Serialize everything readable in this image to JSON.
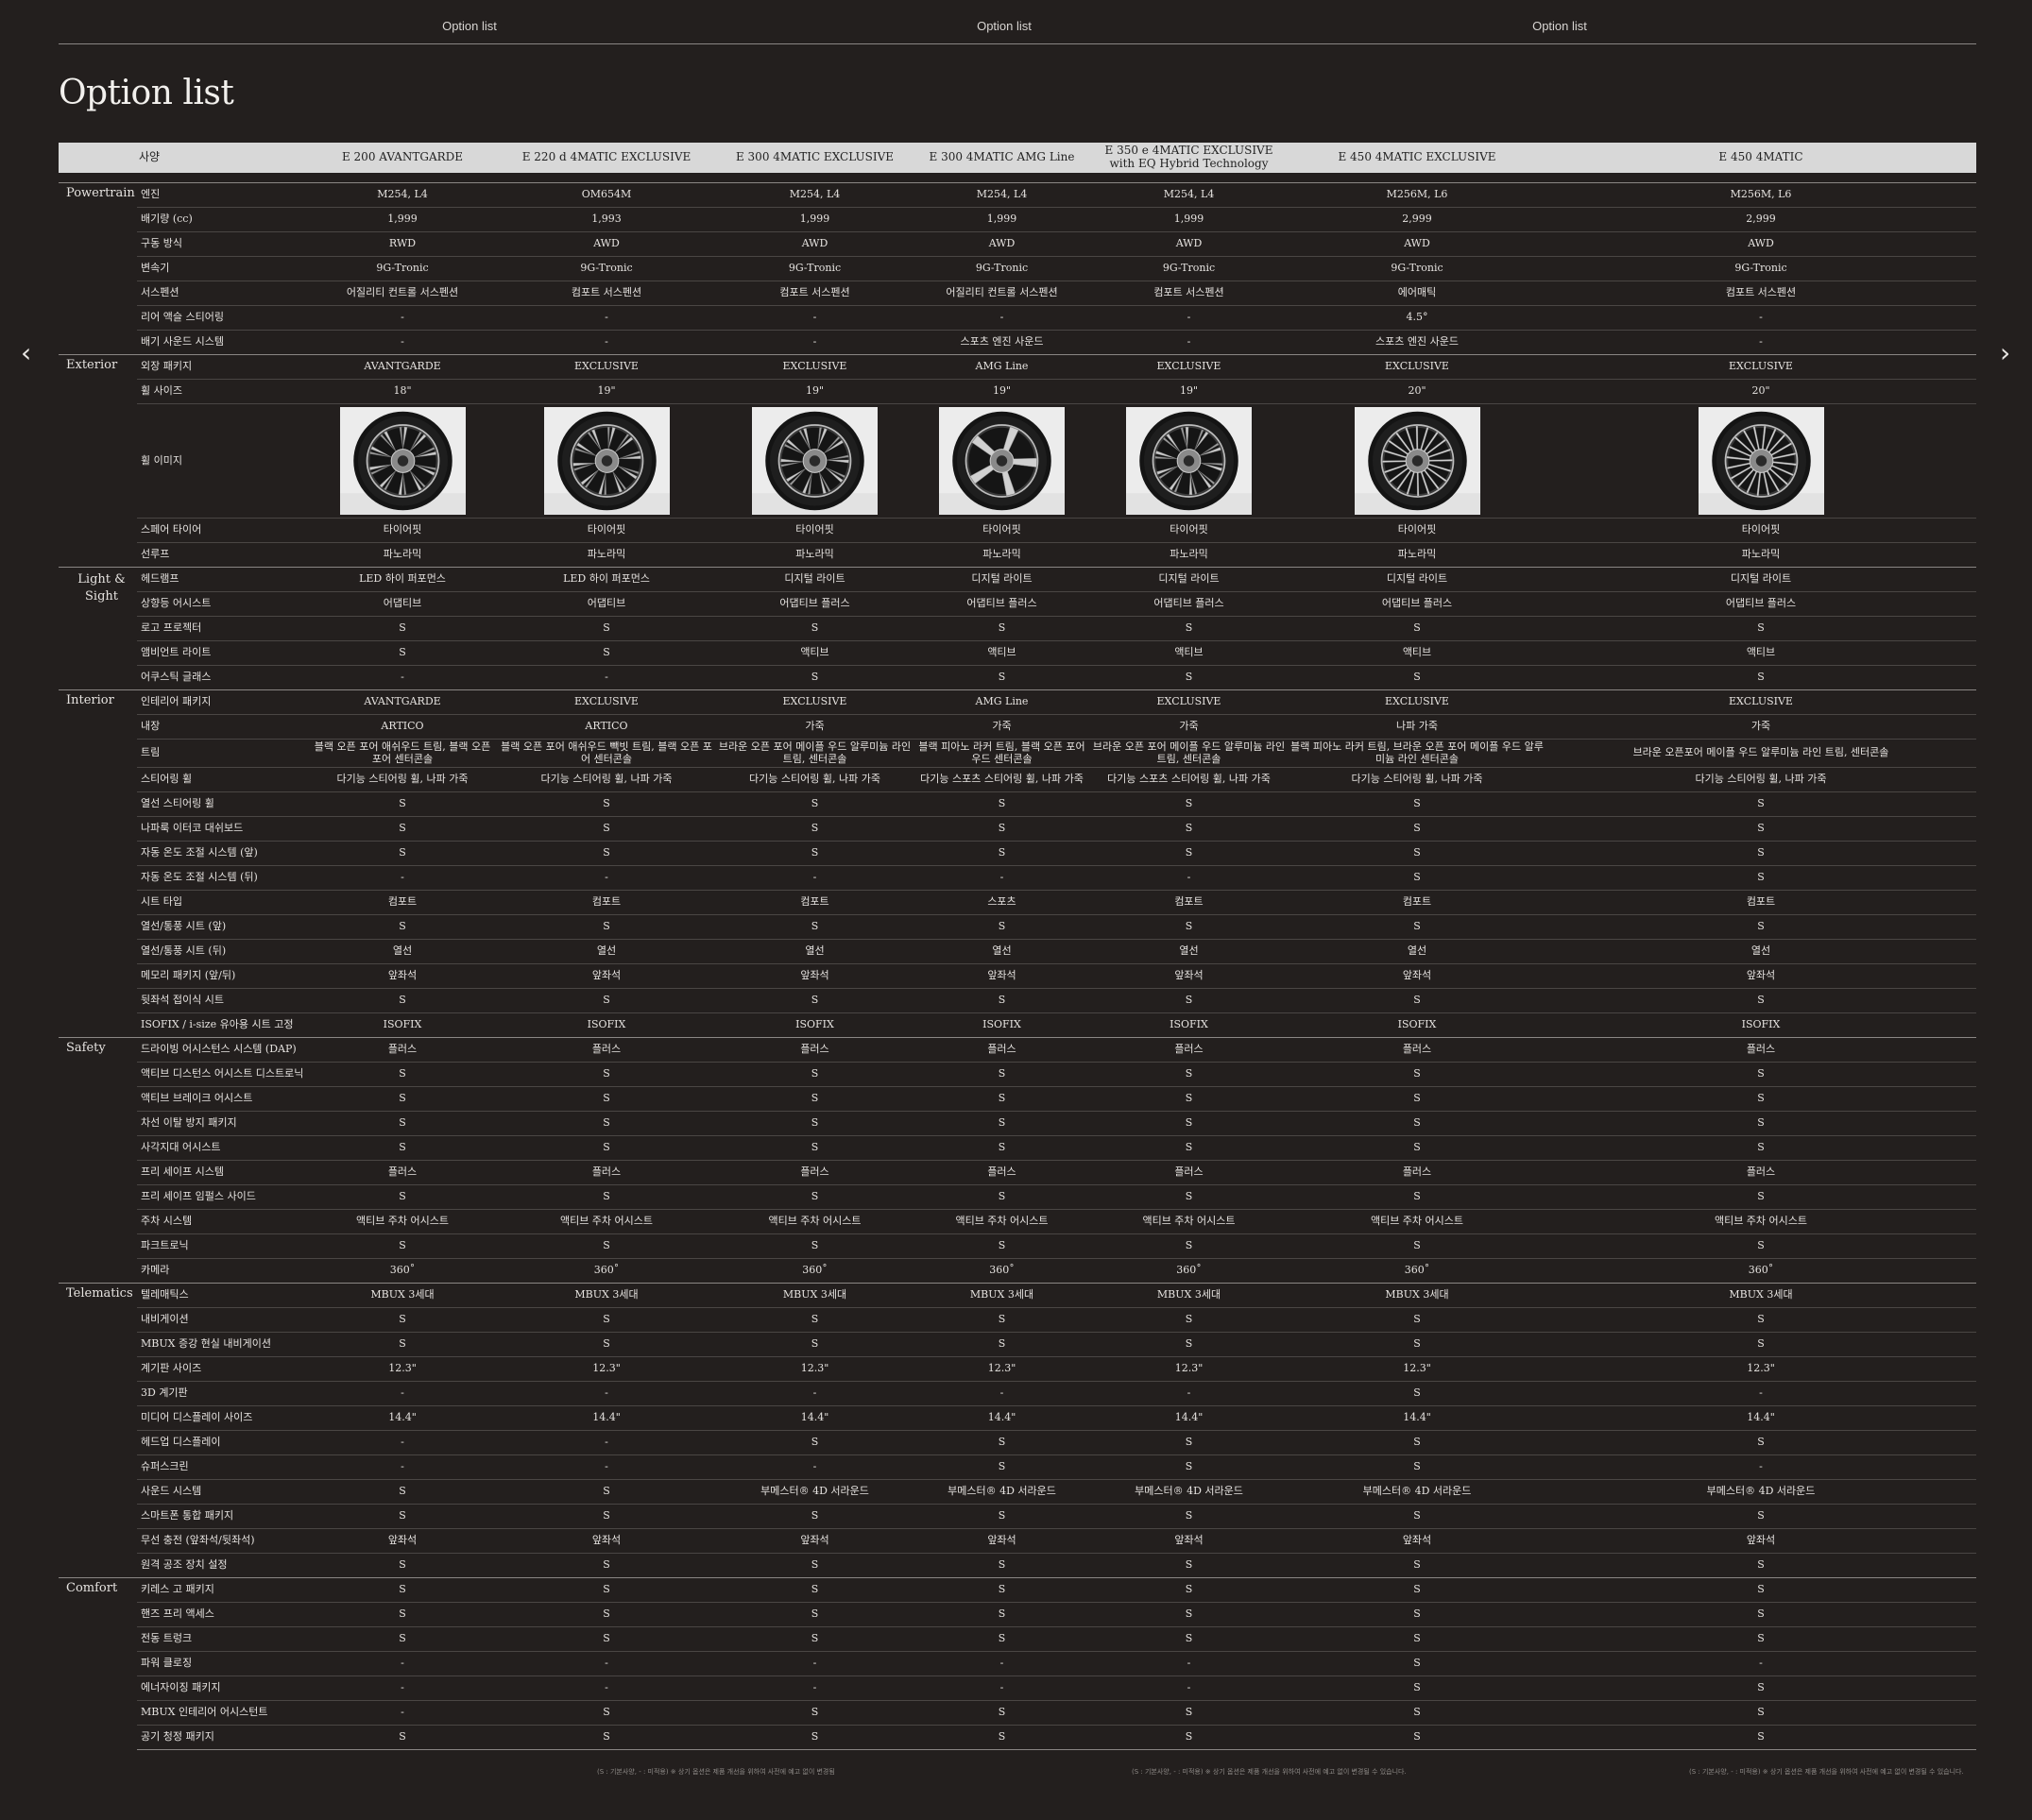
{
  "nav": {
    "tabs": [
      "Option list",
      "Option list",
      "Option list"
    ]
  },
  "page_title": "Option list",
  "header": {
    "label": "사양",
    "models": [
      "E 200 AVANTGARDE",
      "E 220 d 4MATIC EXCLUSIVE",
      "E 300 4MATIC EXCLUSIVE",
      "E 300 4MATIC AMG Line",
      "E 350 e 4MATIC EXCLUSIVE with EQ Hybrid Technology",
      "E 450 4MATIC EXCLUSIVE",
      "E 450 4MATIC"
    ]
  },
  "sections": [
    {
      "name": "Powertrain",
      "rows": [
        [
          "엔진",
          "M254, L4",
          "OM654M",
          "M254, L4",
          "M254, L4",
          "M254, L4",
          "M256M, L6",
          "M256M, L6"
        ],
        [
          "배기량 (cc)",
          "1,999",
          "1,993",
          "1,999",
          "1,999",
          "1,999",
          "2,999",
          "2,999"
        ],
        [
          "구동 방식",
          "RWD",
          "AWD",
          "AWD",
          "AWD",
          "AWD",
          "AWD",
          "AWD"
        ],
        [
          "변속기",
          "9G-Tronic",
          "9G-Tronic",
          "9G-Tronic",
          "9G-Tronic",
          "9G-Tronic",
          "9G-Tronic",
          "9G-Tronic"
        ],
        [
          "서스펜션",
          "어질리티 컨트롤 서스펜션",
          "컴포트 서스펜션",
          "컴포트 서스펜션",
          "어질리티 컨트롤 서스펜션",
          "컴포트 서스펜션",
          "에어매틱",
          "컴포트 서스펜션"
        ],
        [
          "리어 액슬 스티어링",
          "-",
          "-",
          "-",
          "-",
          "-",
          "4.5°",
          "-"
        ],
        [
          "배기 사운드 시스템",
          "-",
          "-",
          "-",
          "스포츠 엔진 사운드",
          "-",
          "스포츠 엔진 사운드",
          "-"
        ]
      ]
    },
    {
      "name": "Exterior",
      "rows": [
        [
          "외장 패키지",
          "AVANTGARDE",
          "EXCLUSIVE",
          "EXCLUSIVE",
          "AMG Line",
          "EXCLUSIVE",
          "EXCLUSIVE",
          "EXCLUSIVE"
        ],
        [
          "휠 사이즈",
          "18\"",
          "19\"",
          "19\"",
          "19\"",
          "19\"",
          "20\"",
          "20\""
        ],
        [
          "휠 이미지"
        ],
        [
          "스페어 타이어",
          "타이어핏",
          "타이어핏",
          "타이어핏",
          "타이어핏",
          "타이어핏",
          "타이어핏",
          "타이어핏"
        ],
        [
          "선루프",
          "파노라믹",
          "파노라믹",
          "파노라믹",
          "파노라믹",
          "파노라믹",
          "파노라믹",
          "파노라믹"
        ]
      ]
    },
    {
      "name": "Light & Sight",
      "rows": [
        [
          "헤드램프",
          "LED 하이 퍼포먼스",
          "LED 하이 퍼포먼스",
          "디지털 라이트",
          "디지털 라이트",
          "디지털 라이트",
          "디지털 라이트",
          "디지털 라이트"
        ],
        [
          "상향등 어시스트",
          "어댑티브",
          "어댑티브",
          "어댑티브 플러스",
          "어댑티브 플러스",
          "어댑티브 플러스",
          "어댑티브 플러스",
          "어댑티브 플러스"
        ],
        [
          "로고 프로젝터",
          "S",
          "S",
          "S",
          "S",
          "S",
          "S",
          "S"
        ],
        [
          "앰비언트 라이트",
          "S",
          "S",
          "액티브",
          "액티브",
          "액티브",
          "액티브",
          "액티브"
        ],
        [
          "어쿠스틱 글래스",
          "-",
          "-",
          "S",
          "S",
          "S",
          "S",
          "S"
        ]
      ]
    },
    {
      "name": "Interior",
      "rows": [
        [
          "인테리어 패키지",
          "AVANTGARDE",
          "EXCLUSIVE",
          "EXCLUSIVE",
          "AMG Line",
          "EXCLUSIVE",
          "EXCLUSIVE",
          "EXCLUSIVE"
        ],
        [
          "내장",
          "ARTICO",
          "ARTICO",
          "가죽",
          "가죽",
          "가죽",
          "나파 가죽",
          "가죽"
        ],
        [
          "트림",
          "블랙 오픈 포어 애쉬우드 트림, 블랙 오픈 포어 센터콘솔",
          "블랙 오픈 포어 애쉬우드 빽빗 트림, 블랙 오픈 포어 센터콘솔",
          "브라운 오픈 포어 메이플 우드 알루미늄 라인 트림, 센터콘솔",
          "블랙 피아노 라커 트림, 블랙 오픈 포어 우드 센터콘솔",
          "브라운 오픈 포어 메이플 우드 알루미늄 라인 트림, 센터콘솔",
          "블랙 피아노 라커 트림, 브라운 오픈 포어 메이플 우드 알루미늄 라인 센터콘솔",
          "브라운 오픈포어 메이플 우드 알루미늄 라인 트림, 센터콘솔"
        ],
        [
          "스티어링 휠",
          "다기능 스티어링 휠, 나파 가죽",
          "다기능 스티어링 휠, 나파 가죽",
          "다기능 스티어링 휠, 나파 가죽",
          "다기능 스포츠 스티어링 휠, 나파 가죽",
          "다기능 스포츠 스티어링 휠, 나파 가죽",
          "다기능 스티어링 휠, 나파 가죽",
          "다기능 스티어링 휠, 나파 가죽"
        ],
        [
          "열선 스티어링 휠",
          "S",
          "S",
          "S",
          "S",
          "S",
          "S",
          "S"
        ],
        [
          "나파룩 이터코 대쉬보드",
          "S",
          "S",
          "S",
          "S",
          "S",
          "S",
          "S"
        ],
        [
          "자동 온도 조절 시스템 (앞)",
          "S",
          "S",
          "S",
          "S",
          "S",
          "S",
          "S"
        ],
        [
          "자동 온도 조절 시스템 (뒤)",
          "-",
          "-",
          "-",
          "-",
          "-",
          "S",
          "S"
        ],
        [
          "시트 타입",
          "컴포트",
          "컴포트",
          "컴포트",
          "스포츠",
          "컴포트",
          "컴포트",
          "컴포트"
        ],
        [
          "열선/통풍 시트 (앞)",
          "S",
          "S",
          "S",
          "S",
          "S",
          "S",
          "S"
        ],
        [
          "열선/통풍 시트 (뒤)",
          "열선",
          "열선",
          "열선",
          "열선",
          "열선",
          "열선",
          "열선"
        ],
        [
          "메모리 패키지 (앞/뒤)",
          "앞좌석",
          "앞좌석",
          "앞좌석",
          "앞좌석",
          "앞좌석",
          "앞좌석",
          "앞좌석"
        ],
        [
          "뒷좌석 접이식 시트",
          "S",
          "S",
          "S",
          "S",
          "S",
          "S",
          "S"
        ],
        [
          "ISOFIX / i-size 유아용 시트 고정",
          "ISOFIX",
          "ISOFIX",
          "ISOFIX",
          "ISOFIX",
          "ISOFIX",
          "ISOFIX",
          "ISOFIX"
        ]
      ]
    },
    {
      "name": "Safety",
      "rows": [
        [
          "드라이빙 어시스턴스 시스템 (DAP)",
          "플러스",
          "플러스",
          "플러스",
          "플러스",
          "플러스",
          "플러스",
          "플러스"
        ],
        [
          "액티브 디스턴스 어시스트 디스트로닉",
          "S",
          "S",
          "S",
          "S",
          "S",
          "S",
          "S"
        ],
        [
          "액티브 브레이크 어시스트",
          "S",
          "S",
          "S",
          "S",
          "S",
          "S",
          "S"
        ],
        [
          "차선 이탈 방지 패키지",
          "S",
          "S",
          "S",
          "S",
          "S",
          "S",
          "S"
        ],
        [
          "사각지대 어시스트",
          "S",
          "S",
          "S",
          "S",
          "S",
          "S",
          "S"
        ],
        [
          "프리 세이프 시스템",
          "플러스",
          "플러스",
          "플러스",
          "플러스",
          "플러스",
          "플러스",
          "플러스"
        ],
        [
          "프리 세이프 임펄스 사이드",
          "S",
          "S",
          "S",
          "S",
          "S",
          "S",
          "S"
        ],
        [
          "주차 시스템",
          "액티브 주차 어시스트",
          "액티브 주차 어시스트",
          "액티브 주차 어시스트",
          "액티브 주차 어시스트",
          "액티브 주차 어시스트",
          "액티브 주차 어시스트",
          "액티브 주차 어시스트"
        ],
        [
          "파크트로닉",
          "S",
          "S",
          "S",
          "S",
          "S",
          "S",
          "S"
        ],
        [
          "카메라",
          "360˚",
          "360˚",
          "360˚",
          "360˚",
          "360˚",
          "360˚",
          "360˚"
        ]
      ]
    },
    {
      "name": "Telematics",
      "rows": [
        [
          "텔레매틱스",
          "MBUX 3세대",
          "MBUX 3세대",
          "MBUX 3세대",
          "MBUX 3세대",
          "MBUX 3세대",
          "MBUX 3세대",
          "MBUX 3세대"
        ],
        [
          "내비게이션",
          "S",
          "S",
          "S",
          "S",
          "S",
          "S",
          "S"
        ],
        [
          "MBUX 증강 현실 내비게이션",
          "S",
          "S",
          "S",
          "S",
          "S",
          "S",
          "S"
        ],
        [
          "계기판 사이즈",
          "12.3\"",
          "12.3\"",
          "12.3\"",
          "12.3\"",
          "12.3\"",
          "12.3\"",
          "12.3\""
        ],
        [
          "3D 계기판",
          "-",
          "-",
          "-",
          "-",
          "-",
          "S",
          "-"
        ],
        [
          "미디어 디스플레이 사이즈",
          "14.4\"",
          "14.4\"",
          "14.4\"",
          "14.4\"",
          "14.4\"",
          "14.4\"",
          "14.4\""
        ],
        [
          "헤드업 디스플레이",
          "-",
          "-",
          "S",
          "S",
          "S",
          "S",
          "S"
        ],
        [
          "슈퍼스크린",
          "-",
          "-",
          "-",
          "S",
          "S",
          "S",
          "-"
        ],
        [
          "사운드 시스템",
          "S",
          "S",
          "부메스터® 4D 서라운드",
          "부메스터® 4D 서라운드",
          "부메스터® 4D 서라운드",
          "부메스터® 4D 서라운드",
          "부메스터® 4D 서라운드"
        ],
        [
          "스마트폰 통합 패키지",
          "S",
          "S",
          "S",
          "S",
          "S",
          "S",
          "S"
        ],
        [
          "무선 충전 (앞좌석/뒷좌석)",
          "앞좌석",
          "앞좌석",
          "앞좌석",
          "앞좌석",
          "앞좌석",
          "앞좌석",
          "앞좌석"
        ],
        [
          "원격 공조 장치 설정",
          "S",
          "S",
          "S",
          "S",
          "S",
          "S",
          "S"
        ]
      ]
    },
    {
      "name": "Comfort",
      "rows": [
        [
          "키레스 고 패키지",
          "S",
          "S",
          "S",
          "S",
          "S",
          "S",
          "S"
        ],
        [
          "핸즈 프리 액세스",
          "S",
          "S",
          "S",
          "S",
          "S",
          "S",
          "S"
        ],
        [
          "전동 트렁크",
          "S",
          "S",
          "S",
          "S",
          "S",
          "S",
          "S"
        ],
        [
          "파워 클로징",
          "-",
          "-",
          "-",
          "-",
          "-",
          "S",
          "-"
        ],
        [
          "에너자이징 패키지",
          "-",
          "-",
          "-",
          "-",
          "-",
          "S",
          "S"
        ],
        [
          "MBUX 인테리어 어시스턴트",
          "-",
          "S",
          "S",
          "S",
          "S",
          "S",
          "S"
        ],
        [
          "공기 청정 패키지",
          "S",
          "S",
          "S",
          "S",
          "S",
          "S",
          "S"
        ]
      ]
    }
  ],
  "footnotes": [
    "(S : 기본사양, - : 미적용)   ※ 상기 옵션은 제품 개선을 위하여 사전에 예고 없이 변경됨",
    "(S : 기본사양, - : 미적용)   ※ 상기 옵션은 제품 개선을 위하여 사전에 예고 없이 변경될 수 있습니다.",
    "(S : 기본사양, - : 미적용)   ※ 상기 옵션은 제품 개선을 위하여 사전에 예고 없이 변경될 수 있습니다."
  ],
  "icons": {
    "prev": "chevron-left-icon",
    "next": "chevron-right-icon",
    "wheel": "wheel-image"
  },
  "colors": {
    "background": "#231f1e",
    "header_bg": "#d8d8d8",
    "text": "#e8e6e3"
  }
}
